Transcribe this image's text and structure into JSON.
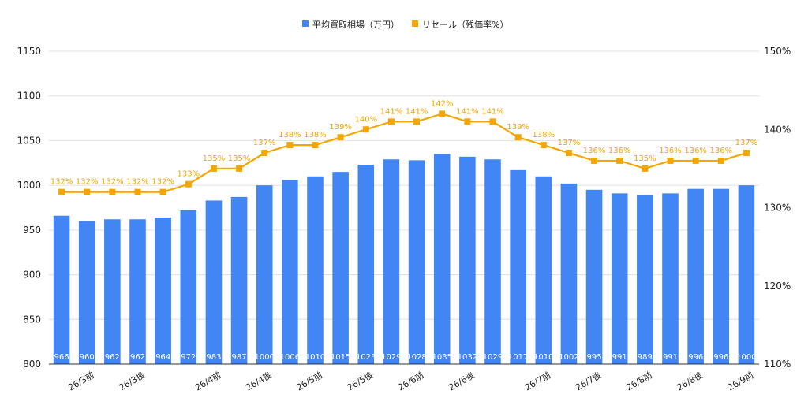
{
  "chart_data": {
    "type": "bar",
    "categories": [
      "",
      "26/3前",
      "",
      "26/3後",
      "",
      "",
      "26/4前",
      "",
      "26/4後",
      "",
      "26/5前",
      "",
      "26/5後",
      "",
      "26/6前",
      "",
      "26/6後",
      "",
      "",
      "26/7前",
      "",
      "26/7後",
      "",
      "26/8前",
      "",
      "26/8後",
      "",
      "26/9前"
    ],
    "series": [
      {
        "name": "平均買取相場（万円）",
        "type": "bar",
        "axis": "left",
        "color": "#4285f4",
        "values": [
          966,
          960,
          962,
          962,
          964,
          972,
          983,
          987,
          1000,
          1006,
          1010,
          1015,
          1023,
          1029,
          1028,
          1035,
          1032,
          1029,
          1017,
          1010,
          1002,
          995,
          991,
          989,
          991,
          996,
          996,
          1000
        ],
        "labels": [
          "966",
          "960",
          "962",
          "962",
          "964",
          "972",
          "983",
          "987",
          "1000",
          "1006",
          "1010",
          "1015",
          "1023",
          "1029",
          "1028",
          "1035",
          "1032",
          "1029",
          "1017",
          "1010",
          "1002",
          "995",
          "991",
          "989",
          "991",
          "996",
          "996",
          "1000"
        ]
      },
      {
        "name": "リセール（残価率%）",
        "type": "line",
        "axis": "right",
        "color": "#f4a700",
        "values": [
          132,
          132,
          132,
          132,
          132,
          133,
          135,
          135,
          137,
          138,
          138,
          139,
          140,
          141,
          141,
          142,
          141,
          141,
          139,
          138,
          137,
          136,
          136,
          135,
          136,
          136,
          136,
          137
        ],
        "labels": [
          "132%",
          "132%",
          "132%",
          "132%",
          "132%",
          "133%",
          "135%",
          "135%",
          "137%",
          "138%",
          "138%",
          "139%",
          "140%",
          "141%",
          "141%",
          "142%",
          "141%",
          "141%",
          "139%",
          "138%",
          "137%",
          "136%",
          "136%",
          "135%",
          "136%",
          "136%",
          "136%",
          "137%"
        ]
      }
    ],
    "y_left": {
      "ylim": [
        800,
        1150
      ],
      "ticks": [
        "800",
        "850",
        "900",
        "950",
        "1000",
        "1050",
        "1100",
        "1150"
      ]
    },
    "y_right": {
      "ylim": [
        110,
        150
      ],
      "ticks": [
        "110%",
        "120%",
        "130%",
        "140%",
        "150%"
      ]
    },
    "legend": {
      "position": "top-center",
      "entries": [
        "平均買取相場（万円）",
        "リセール（残価率%）"
      ]
    },
    "grid": true,
    "colors": {
      "bar": "#4285f4",
      "line": "#f4a700",
      "grid": "#e0e0e0",
      "text": "#222222"
    }
  }
}
